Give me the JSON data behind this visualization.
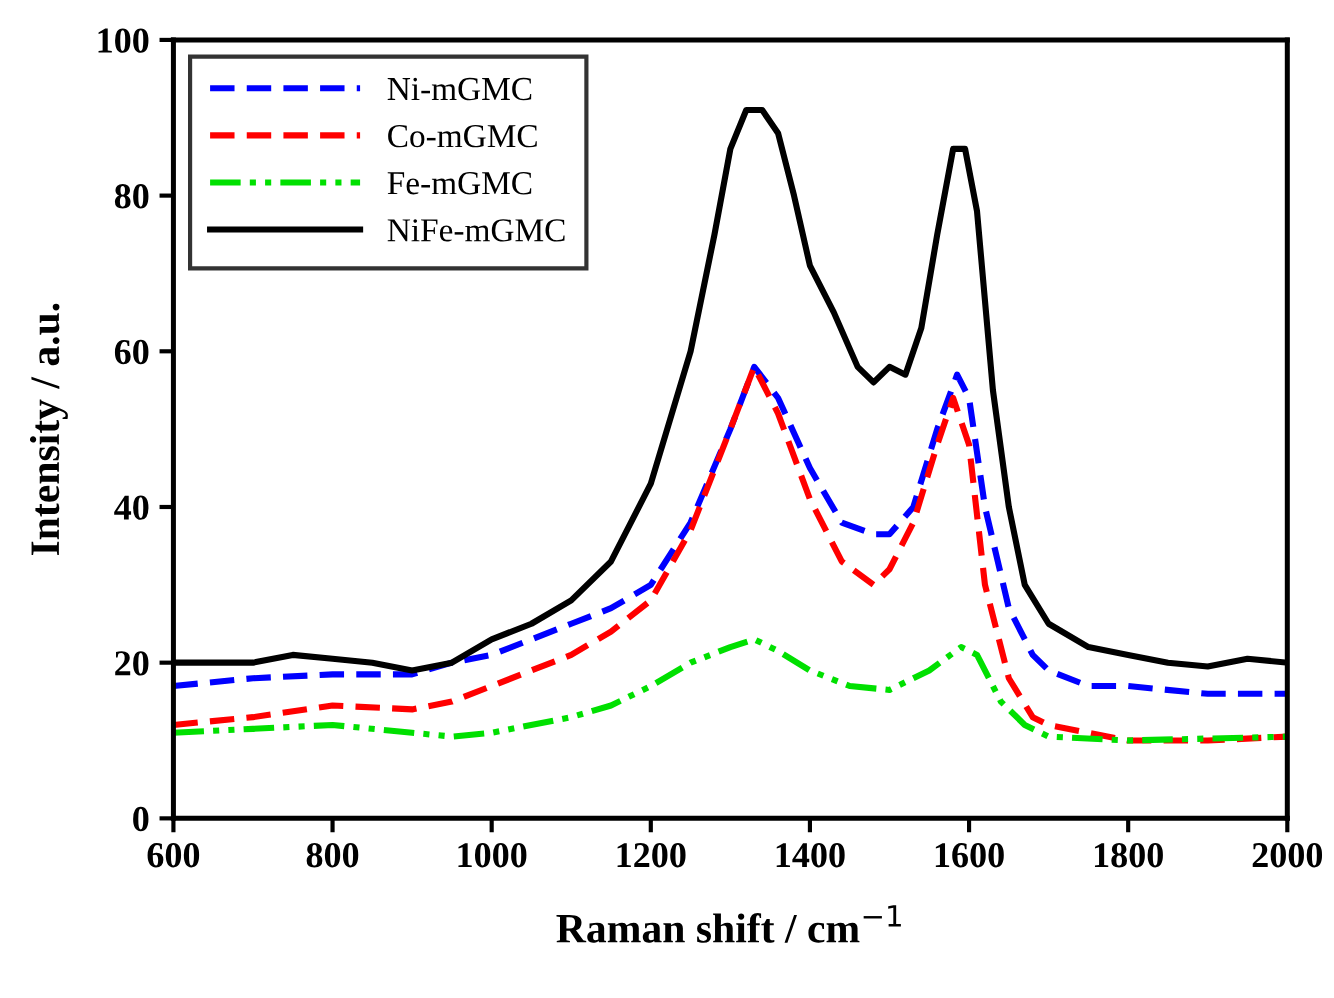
{
  "chart_data": {
    "type": "line",
    "xlabel": "Raman shift / cm$^{−1}$",
    "ylabel": "Intensity / a.u.",
    "xlim": [
      600,
      2000
    ],
    "ylim": [
      0,
      100
    ],
    "xticks": [
      600,
      800,
      1000,
      1200,
      1400,
      1600,
      1800,
      2000
    ],
    "yticks": [
      0,
      20,
      40,
      60,
      80,
      100
    ],
    "grid": false,
    "legend": "top left",
    "marker": "none",
    "series": [
      {
        "name": "Ni-mGMC",
        "color": "#0000ff",
        "line_style": "dashed",
        "x": [
          600,
          700,
          800,
          900,
          950,
          1000,
          1100,
          1150,
          1200,
          1250,
          1300,
          1330,
          1360,
          1400,
          1440,
          1480,
          1500,
          1530,
          1560,
          1585,
          1600,
          1620,
          1650,
          1680,
          1700,
          1750,
          1800,
          1900,
          2000
        ],
        "values": [
          17,
          18,
          18.5,
          18.5,
          20,
          21,
          25,
          27,
          30,
          38,
          50,
          58,
          54,
          45,
          38,
          36.5,
          36.5,
          40,
          50,
          57,
          54,
          40,
          27,
          21,
          19,
          17,
          17,
          16,
          16
        ]
      },
      {
        "name": "Co-mGMC",
        "color": "#ff0000",
        "line_style": "dashed",
        "x": [
          600,
          700,
          800,
          900,
          950,
          1000,
          1050,
          1100,
          1150,
          1200,
          1250,
          1300,
          1330,
          1360,
          1400,
          1440,
          1480,
          1500,
          1530,
          1560,
          1580,
          1600,
          1620,
          1650,
          1680,
          1700,
          1800,
          1900,
          2000
        ],
        "values": [
          12,
          13,
          14.5,
          14,
          15,
          17,
          19,
          21,
          24,
          28,
          37,
          50,
          58,
          52,
          41,
          33,
          30,
          32,
          38,
          48,
          54,
          48,
          30,
          18,
          13,
          12,
          10,
          10,
          10.5
        ]
      },
      {
        "name": "Fe-mGMC",
        "color": "#00e000",
        "line_style": "dotted",
        "x": [
          600,
          700,
          800,
          900,
          950,
          1000,
          1100,
          1150,
          1200,
          1250,
          1300,
          1330,
          1360,
          1400,
          1450,
          1500,
          1550,
          1590,
          1610,
          1640,
          1670,
          1700,
          1800,
          2000
        ],
        "values": [
          11,
          11.5,
          12,
          11,
          10.5,
          11,
          13,
          14.5,
          17,
          20,
          22,
          23,
          21.5,
          19,
          17,
          16.5,
          19,
          22,
          21,
          15,
          12,
          10.5,
          10,
          10.5
        ]
      },
      {
        "name": "NiFe-mGMC",
        "color": "#000000",
        "line_style": "solid",
        "x": [
          600,
          650,
          700,
          750,
          800,
          850,
          900,
          950,
          1000,
          1050,
          1100,
          1150,
          1200,
          1250,
          1280,
          1300,
          1320,
          1340,
          1360,
          1380,
          1400,
          1430,
          1460,
          1480,
          1500,
          1520,
          1540,
          1560,
          1580,
          1595,
          1610,
          1630,
          1650,
          1670,
          1700,
          1750,
          1800,
          1850,
          1900,
          1950,
          2000
        ],
        "values": [
          20,
          20,
          20,
          21,
          20.5,
          20,
          19,
          20,
          23,
          25,
          28,
          33,
          43,
          60,
          75,
          86,
          91,
          91,
          88,
          80,
          71,
          65,
          58,
          56,
          58,
          57,
          63,
          75,
          86,
          86,
          78,
          55,
          40,
          30,
          25,
          22,
          21,
          20,
          19.5,
          20.5,
          20
        ]
      }
    ]
  }
}
